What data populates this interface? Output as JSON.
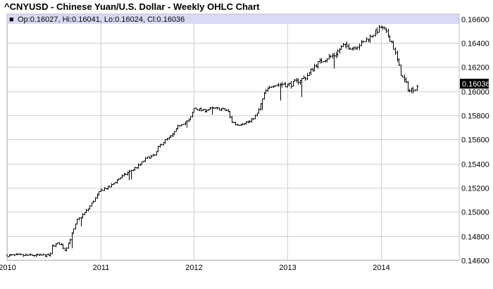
{
  "chart_data": {
    "type": "ohlc",
    "title": "^CNYUSD - Chinese Yuan/U.S. Dollar - Weekly OHLC Chart",
    "legend": {
      "marker": "■",
      "text": "Op:0.16027, Hi:0.16041, Lo:0.16024, Cl:0.16036"
    },
    "last_value_label": "0.16036",
    "xlim": [
      2010.0,
      2014.84
    ],
    "ylim": [
      0.146,
      0.1664
    ],
    "x_ticks": [
      2010,
      2011,
      2012,
      2013,
      2014
    ],
    "x_tick_labels": [
      "2010",
      "2011",
      "2012",
      "2013",
      "2014"
    ],
    "y_ticks": [
      0.146,
      0.148,
      0.15,
      0.152,
      0.154,
      0.156,
      0.158,
      0.16,
      0.162,
      0.164,
      0.166
    ],
    "y_tick_labels": [
      "0.14600",
      "0.14800",
      "0.15000",
      "0.15200",
      "0.15400",
      "0.15600",
      "0.15800",
      "0.16000",
      "0.16200",
      "0.16400",
      "0.16600"
    ],
    "grid": true,
    "close_path": [
      [
        2010.0,
        0.1464
      ],
      [
        2010.46,
        0.1464
      ],
      [
        2010.48,
        0.1472
      ],
      [
        2010.56,
        0.1474
      ],
      [
        2010.62,
        0.1468
      ],
      [
        2010.68,
        0.1479
      ],
      [
        2010.75,
        0.1493
      ],
      [
        2010.86,
        0.1502
      ],
      [
        2011.0,
        0.1518
      ],
      [
        2011.1,
        0.1521
      ],
      [
        2011.18,
        0.1527
      ],
      [
        2011.3,
        0.1533
      ],
      [
        2011.4,
        0.1538
      ],
      [
        2011.5,
        0.1545
      ],
      [
        2011.58,
        0.1547
      ],
      [
        2011.62,
        0.1554
      ],
      [
        2011.7,
        0.156
      ],
      [
        2011.76,
        0.1563
      ],
      [
        2011.84,
        0.1572
      ],
      [
        2011.95,
        0.1576
      ],
      [
        2012.0,
        0.1586
      ],
      [
        2012.1,
        0.1584
      ],
      [
        2012.2,
        0.1586
      ],
      [
        2012.3,
        0.1585
      ],
      [
        2012.36,
        0.1584
      ],
      [
        2012.4,
        0.1575
      ],
      [
        2012.46,
        0.1572
      ],
      [
        2012.54,
        0.1574
      ],
      [
        2012.6,
        0.1575
      ],
      [
        2012.68,
        0.1582
      ],
      [
        2012.76,
        0.16
      ],
      [
        2012.84,
        0.1605
      ],
      [
        2012.96,
        0.1606
      ],
      [
        2013.0,
        0.1605
      ],
      [
        2013.1,
        0.1608
      ],
      [
        2013.2,
        0.1612
      ],
      [
        2013.3,
        0.1622
      ],
      [
        2013.4,
        0.1627
      ],
      [
        2013.5,
        0.163
      ],
      [
        2013.6,
        0.1638
      ],
      [
        2013.7,
        0.1636
      ],
      [
        2013.8,
        0.164
      ],
      [
        2013.9,
        0.1646
      ],
      [
        2014.0,
        0.1653
      ],
      [
        2014.06,
        0.1648
      ],
      [
        2014.12,
        0.164
      ],
      [
        2014.18,
        0.1624
      ],
      [
        2014.22,
        0.1612
      ],
      [
        2014.26,
        0.1608
      ],
      [
        2014.3,
        0.16
      ],
      [
        2014.36,
        0.1603
      ],
      [
        2014.4,
        0.16036
      ]
    ]
  }
}
